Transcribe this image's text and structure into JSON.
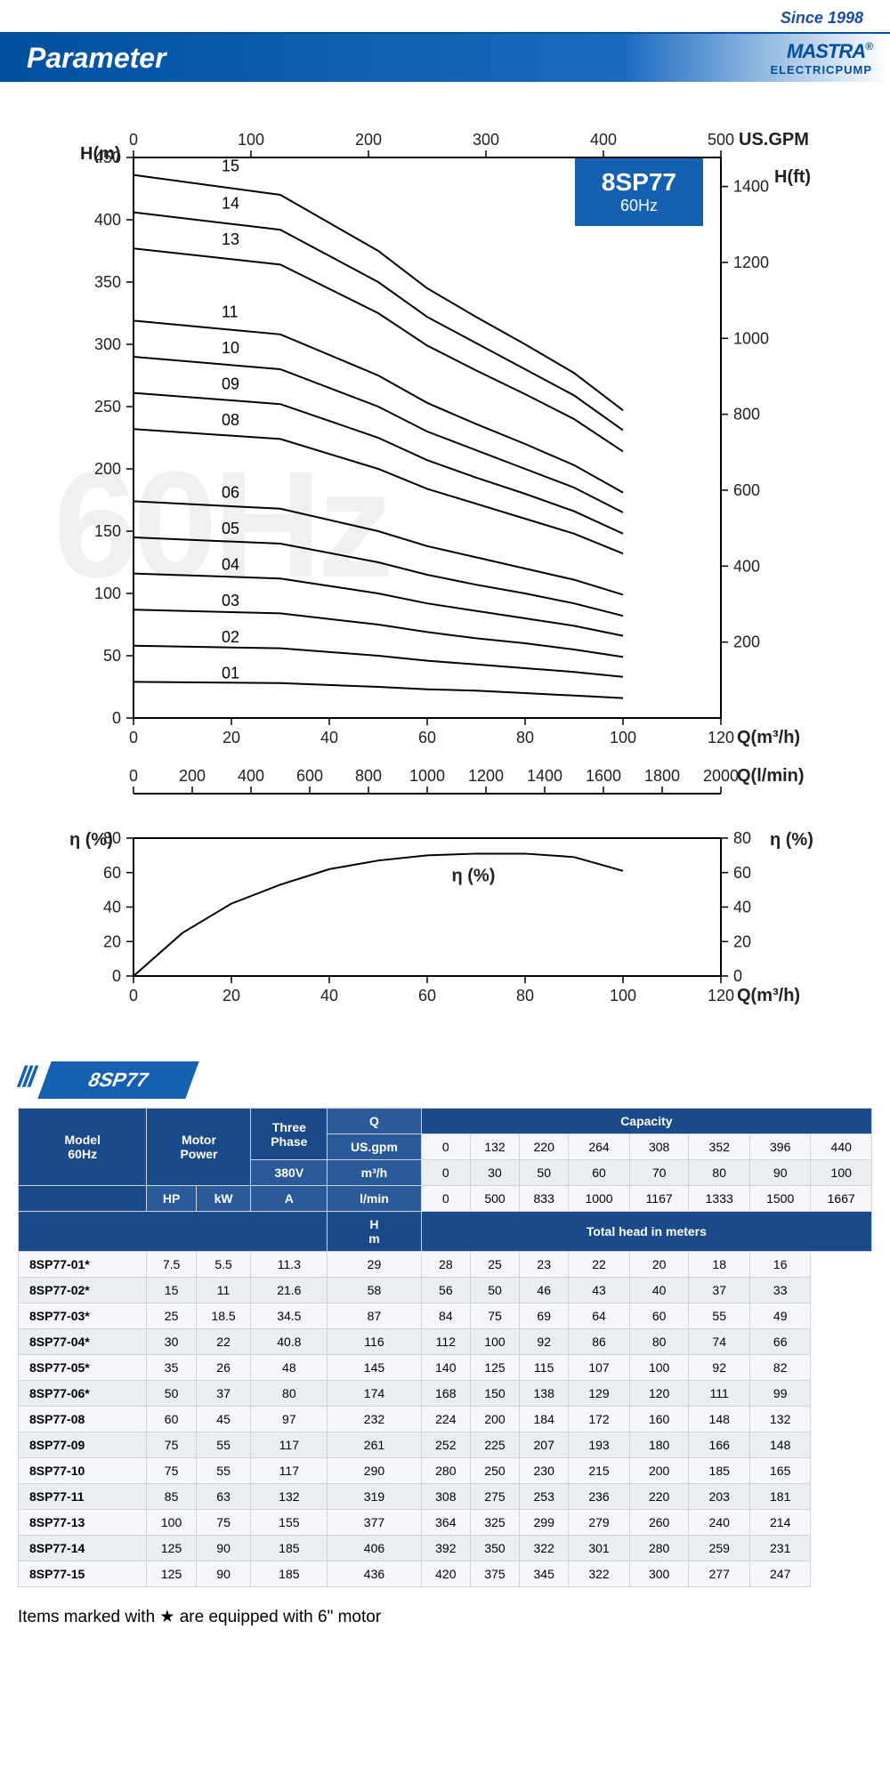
{
  "header": {
    "since": "Since 1998",
    "title": "Parameter",
    "brand": "MASTRA",
    "brand_sub": "ELECTRICPUMP",
    "reg": "®"
  },
  "colors": {
    "primary": "#1560b0",
    "header_bg": "#0050a0",
    "row_odd": "#f4f6f9",
    "row_even": "#eaedf2",
    "watermark": "#eef0f2"
  },
  "main_chart": {
    "badge_title": "8SP77",
    "badge_sub": "60Hz",
    "watermark_text": "60Hz",
    "y_left_label": "H(m)",
    "y_right_label": "H(ft)",
    "x_bottom_label": "Q(m³/h)",
    "x_top_label": "US.GPM",
    "y_left": {
      "min": 0,
      "max": 450,
      "ticks": [
        0,
        50,
        100,
        150,
        200,
        250,
        300,
        350,
        400,
        450
      ]
    },
    "y_right": {
      "ticks": [
        200,
        400,
        600,
        800,
        1000,
        1200,
        1400
      ]
    },
    "x_bottom": {
      "min": 0,
      "max": 120,
      "ticks": [
        0,
        20,
        40,
        60,
        80,
        100,
        120
      ]
    },
    "x_top": {
      "ticks": [
        0,
        100,
        200,
        300,
        400,
        500
      ]
    },
    "curves": [
      {
        "label": "01",
        "x_label": 18,
        "data": [
          [
            0,
            29
          ],
          [
            30,
            28
          ],
          [
            50,
            25
          ],
          [
            60,
            23
          ],
          [
            70,
            22
          ],
          [
            80,
            20
          ],
          [
            90,
            18
          ],
          [
            100,
            16
          ]
        ]
      },
      {
        "label": "02",
        "x_label": 18,
        "data": [
          [
            0,
            58
          ],
          [
            30,
            56
          ],
          [
            50,
            50
          ],
          [
            60,
            46
          ],
          [
            70,
            43
          ],
          [
            80,
            40
          ],
          [
            90,
            37
          ],
          [
            100,
            33
          ]
        ]
      },
      {
        "label": "03",
        "x_label": 18,
        "data": [
          [
            0,
            87
          ],
          [
            30,
            84
          ],
          [
            50,
            75
          ],
          [
            60,
            69
          ],
          [
            70,
            64
          ],
          [
            80,
            60
          ],
          [
            90,
            55
          ],
          [
            100,
            49
          ]
        ]
      },
      {
        "label": "04",
        "x_label": 18,
        "data": [
          [
            0,
            116
          ],
          [
            30,
            112
          ],
          [
            50,
            100
          ],
          [
            60,
            92
          ],
          [
            70,
            86
          ],
          [
            80,
            80
          ],
          [
            90,
            74
          ],
          [
            100,
            66
          ]
        ]
      },
      {
        "label": "05",
        "x_label": 18,
        "data": [
          [
            0,
            145
          ],
          [
            30,
            140
          ],
          [
            50,
            125
          ],
          [
            60,
            115
          ],
          [
            70,
            107
          ],
          [
            80,
            100
          ],
          [
            90,
            92
          ],
          [
            100,
            82
          ]
        ]
      },
      {
        "label": "06",
        "x_label": 18,
        "data": [
          [
            0,
            174
          ],
          [
            30,
            168
          ],
          [
            50,
            150
          ],
          [
            60,
            138
          ],
          [
            70,
            129
          ],
          [
            80,
            120
          ],
          [
            90,
            111
          ],
          [
            100,
            99
          ]
        ]
      },
      {
        "label": "08",
        "x_label": 18,
        "data": [
          [
            0,
            232
          ],
          [
            30,
            224
          ],
          [
            50,
            200
          ],
          [
            60,
            184
          ],
          [
            70,
            172
          ],
          [
            80,
            160
          ],
          [
            90,
            148
          ],
          [
            100,
            132
          ]
        ]
      },
      {
        "label": "09",
        "x_label": 18,
        "data": [
          [
            0,
            261
          ],
          [
            30,
            252
          ],
          [
            50,
            225
          ],
          [
            60,
            207
          ],
          [
            70,
            193
          ],
          [
            80,
            180
          ],
          [
            90,
            166
          ],
          [
            100,
            148
          ]
        ]
      },
      {
        "label": "10",
        "x_label": 18,
        "data": [
          [
            0,
            290
          ],
          [
            30,
            280
          ],
          [
            50,
            250
          ],
          [
            60,
            230
          ],
          [
            70,
            215
          ],
          [
            80,
            200
          ],
          [
            90,
            185
          ],
          [
            100,
            165
          ]
        ]
      },
      {
        "label": "11",
        "x_label": 18,
        "data": [
          [
            0,
            319
          ],
          [
            30,
            308
          ],
          [
            50,
            275
          ],
          [
            60,
            253
          ],
          [
            70,
            236
          ],
          [
            80,
            220
          ],
          [
            90,
            203
          ],
          [
            100,
            181
          ]
        ]
      },
      {
        "label": "13",
        "x_label": 18,
        "data": [
          [
            0,
            377
          ],
          [
            30,
            364
          ],
          [
            50,
            325
          ],
          [
            60,
            299
          ],
          [
            70,
            279
          ],
          [
            80,
            260
          ],
          [
            90,
            240
          ],
          [
            100,
            214
          ]
        ]
      },
      {
        "label": "14",
        "x_label": 18,
        "data": [
          [
            0,
            406
          ],
          [
            30,
            392
          ],
          [
            50,
            350
          ],
          [
            60,
            322
          ],
          [
            70,
            301
          ],
          [
            80,
            280
          ],
          [
            90,
            259
          ],
          [
            100,
            231
          ]
        ]
      },
      {
        "label": "15",
        "x_label": 18,
        "data": [
          [
            0,
            436
          ],
          [
            30,
            420
          ],
          [
            50,
            375
          ],
          [
            60,
            345
          ],
          [
            70,
            322
          ],
          [
            80,
            300
          ],
          [
            90,
            277
          ],
          [
            100,
            247
          ]
        ]
      }
    ]
  },
  "lmin_axis": {
    "label": "Q(l/min)",
    "ticks": [
      0,
      200,
      400,
      600,
      800,
      1000,
      1200,
      1400,
      1600,
      1800,
      2000
    ]
  },
  "eff_chart": {
    "y_label": "η (%)",
    "x_label": "Q(m³/h)",
    "center_label": "η (%)",
    "y": {
      "min": 0,
      "max": 80,
      "ticks": [
        0,
        20,
        40,
        60,
        80
      ]
    },
    "x": {
      "min": 0,
      "max": 120,
      "ticks": [
        0,
        20,
        40,
        60,
        80,
        100,
        120
      ]
    },
    "curve": [
      [
        0,
        0
      ],
      [
        10,
        25
      ],
      [
        20,
        42
      ],
      [
        30,
        53
      ],
      [
        40,
        62
      ],
      [
        50,
        67
      ],
      [
        60,
        70
      ],
      [
        70,
        71
      ],
      [
        80,
        71
      ],
      [
        90,
        69
      ],
      [
        100,
        61
      ]
    ]
  },
  "table": {
    "section_title": "8SP77",
    "headers": {
      "model": "Model",
      "model_sub": "60Hz",
      "motor": "Motor",
      "motor_sub": "Power",
      "three": "Three",
      "three_sub": "Phase",
      "volt": "380V",
      "q": "Q",
      "us_gpm": "US.gpm",
      "m3h": "m³/h",
      "lmin": "l/min",
      "capacity": "Capacity",
      "total_head": "Total head in meters",
      "hp": "HP",
      "kw": "kW",
      "a": "A",
      "hm": "H\nm"
    },
    "capacity_cols": {
      "us_gpm": [
        0,
        132,
        220,
        264,
        308,
        352,
        396,
        440
      ],
      "m3h": [
        0,
        30,
        50,
        60,
        70,
        80,
        90,
        100
      ],
      "lmin": [
        0,
        500,
        833,
        1000,
        1167,
        1333,
        1500,
        1667
      ]
    },
    "rows": [
      {
        "model": "8SP77-01*",
        "hp": 7.5,
        "kw": 5.5,
        "a": 11.3,
        "head": [
          29,
          28,
          25,
          23,
          22,
          20,
          18,
          16
        ]
      },
      {
        "model": "8SP77-02*",
        "hp": 15,
        "kw": 11,
        "a": 21.6,
        "head": [
          58,
          56,
          50,
          46,
          43,
          40,
          37,
          33
        ]
      },
      {
        "model": "8SP77-03*",
        "hp": 25,
        "kw": 18.5,
        "a": 34.5,
        "head": [
          87,
          84,
          75,
          69,
          64,
          60,
          55,
          49
        ]
      },
      {
        "model": "8SP77-04*",
        "hp": 30,
        "kw": 22,
        "a": 40.8,
        "head": [
          116,
          112,
          100,
          92,
          86,
          80,
          74,
          66
        ]
      },
      {
        "model": "8SP77-05*",
        "hp": 35,
        "kw": 26,
        "a": 48,
        "head": [
          145,
          140,
          125,
          115,
          107,
          100,
          92,
          82
        ]
      },
      {
        "model": "8SP77-06*",
        "hp": 50,
        "kw": 37,
        "a": 80,
        "head": [
          174,
          168,
          150,
          138,
          129,
          120,
          111,
          99
        ]
      },
      {
        "model": "8SP77-08",
        "hp": 60,
        "kw": 45,
        "a": 97,
        "head": [
          232,
          224,
          200,
          184,
          172,
          160,
          148,
          132
        ]
      },
      {
        "model": "8SP77-09",
        "hp": 75,
        "kw": 55,
        "a": 117,
        "head": [
          261,
          252,
          225,
          207,
          193,
          180,
          166,
          148
        ]
      },
      {
        "model": "8SP77-10",
        "hp": 75,
        "kw": 55,
        "a": 117,
        "head": [
          290,
          280,
          250,
          230,
          215,
          200,
          185,
          165
        ]
      },
      {
        "model": "8SP77-11",
        "hp": 85,
        "kw": 63,
        "a": 132,
        "head": [
          319,
          308,
          275,
          253,
          236,
          220,
          203,
          181
        ]
      },
      {
        "model": "8SP77-13",
        "hp": 100,
        "kw": 75,
        "a": 155,
        "head": [
          377,
          364,
          325,
          299,
          279,
          260,
          240,
          214
        ]
      },
      {
        "model": "8SP77-14",
        "hp": 125,
        "kw": 90,
        "a": 185,
        "head": [
          406,
          392,
          350,
          322,
          301,
          280,
          259,
          231
        ]
      },
      {
        "model": "8SP77-15",
        "hp": 125,
        "kw": 90,
        "a": 185,
        "head": [
          436,
          420,
          375,
          345,
          322,
          300,
          277,
          247
        ]
      }
    ],
    "footnote": "Items marked with  ★  are equipped with 6\" motor"
  }
}
